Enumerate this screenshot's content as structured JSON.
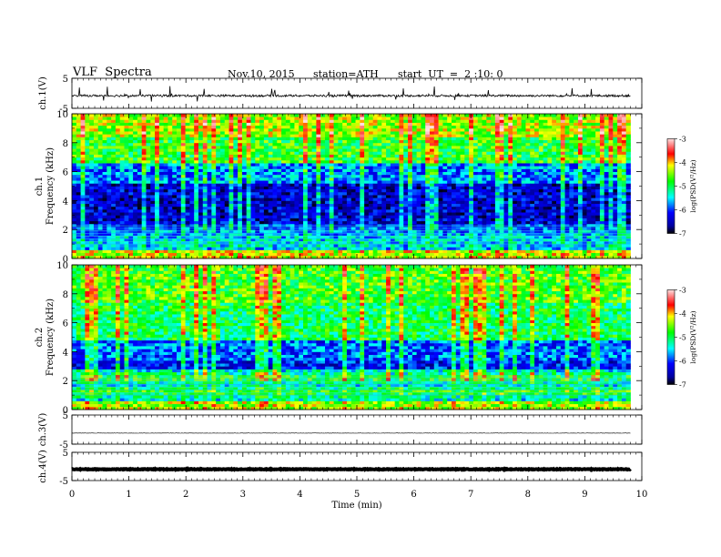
{
  "header": {
    "title": "VLF  Spectra",
    "date": "Nov.10, 2015",
    "station": "station=ATH",
    "start_time": "start  UT  =  2 :10: 0"
  },
  "chart_data": [
    {
      "type": "line",
      "panel": "ch1-waveform",
      "ylabel": "ch.1(V)",
      "ylim": [
        -5,
        5
      ],
      "yticks": [
        "5",
        "-5"
      ],
      "series": [
        {
          "x": [
            0,
            9.8
          ],
          "approx_level": -0.8
        }
      ]
    },
    {
      "type": "heatmap",
      "panel": "ch1-spectrogram",
      "ylabel_line1": "ch.1",
      "ylabel_line2": "Frequency (kHz)",
      "ylim": [
        0,
        10
      ],
      "yticks": [
        "0",
        "2",
        "4",
        "6",
        "8",
        "10"
      ],
      "x_extent": [
        0,
        9.8
      ],
      "colorbar": {
        "label": "log(PSD(V²/Hz)",
        "ticks": [
          "-3",
          "-4",
          "-5",
          "-6",
          "-7"
        ],
        "range": [
          -7,
          -3
        ]
      }
    },
    {
      "type": "heatmap",
      "panel": "ch2-spectrogram",
      "ylabel_line1": "ch.2",
      "ylabel_line2": "Frequency (kHz)",
      "ylim": [
        0,
        10
      ],
      "yticks": [
        "0",
        "2",
        "4",
        "6",
        "8",
        "10"
      ],
      "x_extent": [
        0,
        9.8
      ],
      "colorbar": {
        "label": "log(PSD(V²/Hz)",
        "ticks": [
          "-3",
          "-4",
          "-5",
          "-6",
          "-7"
        ],
        "range": [
          -7,
          -3
        ]
      }
    },
    {
      "type": "line",
      "panel": "ch3-waveform",
      "ylabel": "ch.3(V)",
      "ylim": [
        -5,
        5
      ],
      "yticks": [
        "5",
        "-5"
      ],
      "series": [
        {
          "x": [
            0,
            9.8
          ],
          "approx_level": -1.2
        }
      ]
    },
    {
      "type": "line",
      "panel": "ch4-waveform",
      "ylabel": "ch.4(V)",
      "ylim": [
        -5,
        5
      ],
      "yticks": [
        "5",
        "-5"
      ],
      "series": [
        {
          "x": [
            0,
            9.8
          ],
          "approx_level": -1.0
        }
      ]
    }
  ],
  "x_axis": {
    "label": "Time  (min)",
    "range": [
      0,
      10
    ],
    "ticks": [
      "0",
      "1",
      "2",
      "3",
      "4",
      "5",
      "6",
      "7",
      "8",
      "9",
      "10"
    ]
  }
}
